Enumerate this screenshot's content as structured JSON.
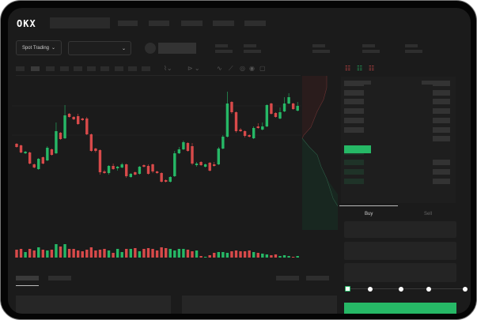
{
  "brand": {
    "logo": "OKX"
  },
  "toolbar": {
    "market_select": "Spot Trading",
    "chevron": "⌄"
  },
  "orderbook": {
    "view_icons": [
      "orderbook-both-icon",
      "orderbook-bids-icon",
      "orderbook-asks-icon"
    ]
  },
  "trade": {
    "tabs": [
      "Buy",
      "Sell"
    ],
    "active_tab": "Buy",
    "slider_percent": 0
  },
  "colors": {
    "up": "#26b866",
    "down": "#d84a4a",
    "background": "#1b1b1b"
  },
  "chart_data": {
    "type": "candlestick",
    "candles": [
      [
        119,
        120,
        114,
        115
      ],
      [
        117,
        118,
        107,
        108
      ],
      [
        107,
        110,
        106,
        109
      ],
      [
        108,
        109,
        93,
        94
      ],
      [
        93,
        94,
        88,
        89
      ],
      [
        87,
        101,
        86,
        100
      ],
      [
        102,
        103,
        93,
        94
      ],
      [
        98,
        116,
        97,
        114
      ],
      [
        112,
        113,
        104,
        105
      ],
      [
        107,
        146,
        106,
        135
      ],
      [
        133,
        134,
        124,
        125
      ],
      [
        126,
        168,
        125,
        155
      ],
      [
        157,
        158,
        152,
        153
      ],
      [
        153,
        154,
        149,
        150
      ],
      [
        154,
        157,
        143,
        144
      ],
      [
        151,
        152,
        148,
        149
      ],
      [
        151,
        153,
        130,
        131
      ],
      [
        131,
        132,
        109,
        110
      ],
      [
        113,
        114,
        108,
        110
      ],
      [
        111,
        112,
        80,
        83
      ],
      [
        84,
        86,
        81,
        82
      ],
      [
        82,
        92,
        80,
        91
      ],
      [
        91,
        94,
        86,
        87
      ],
      [
        88,
        91,
        85,
        90
      ],
      [
        89,
        95,
        88,
        93
      ],
      [
        93,
        94,
        76,
        78
      ],
      [
        77,
        82,
        76,
        81
      ],
      [
        83,
        84,
        79,
        80
      ],
      [
        81,
        91,
        80,
        90
      ],
      [
        92,
        93,
        89,
        90
      ],
      [
        91,
        93,
        80,
        81
      ],
      [
        93,
        94,
        82,
        84
      ],
      [
        84,
        85,
        81,
        82
      ],
      [
        82,
        83,
        70,
        71
      ],
      [
        73,
        74,
        70,
        71
      ],
      [
        71,
        78,
        70,
        77
      ],
      [
        78,
        110,
        77,
        107
      ],
      [
        107,
        115,
        106,
        112
      ],
      [
        112,
        123,
        111,
        121
      ],
      [
        120,
        121,
        109,
        110
      ],
      [
        116,
        120,
        92,
        94
      ],
      [
        92,
        96,
        90,
        94
      ],
      [
        96,
        97,
        91,
        92
      ],
      [
        90,
        94,
        89,
        93
      ],
      [
        95,
        96,
        84,
        85
      ],
      [
        93,
        96,
        90,
        91
      ],
      [
        93,
        115,
        92,
        113
      ],
      [
        113,
        130,
        112,
        128
      ],
      [
        128,
        185,
        127,
        170
      ],
      [
        172,
        173,
        157,
        159
      ],
      [
        159,
        160,
        133,
        135
      ],
      [
        137,
        139,
        134,
        135
      ],
      [
        135,
        136,
        127,
        129
      ],
      [
        130,
        131,
        127,
        128
      ],
      [
        126,
        141,
        125,
        139
      ],
      [
        141,
        145,
        138,
        139
      ],
      [
        137,
        146,
        136,
        141
      ],
      [
        141,
        169,
        140,
        168
      ],
      [
        170,
        171,
        156,
        157
      ],
      [
        158,
        159,
        152,
        153
      ],
      [
        151,
        165,
        150,
        159
      ],
      [
        160,
        178,
        159,
        170
      ],
      [
        170,
        183,
        169,
        178
      ],
      [
        170,
        171,
        162,
        163
      ],
      [
        161,
        172,
        160,
        167
      ]
    ],
    "volumes": [
      10,
      11,
      7,
      11,
      9,
      13,
      10,
      9,
      10,
      17,
      14,
      17,
      11,
      11,
      9,
      8,
      10,
      13,
      9,
      10,
      11,
      9,
      6,
      11,
      7,
      11,
      11,
      12,
      8,
      11,
      12,
      11,
      9,
      13,
      12,
      11,
      9,
      11,
      11,
      10,
      8,
      9,
      2,
      1,
      3,
      6,
      7,
      7,
      6,
      8,
      9,
      8,
      8,
      9,
      7,
      6,
      5,
      4,
      3,
      4,
      2,
      3,
      2,
      1,
      2
    ]
  }
}
